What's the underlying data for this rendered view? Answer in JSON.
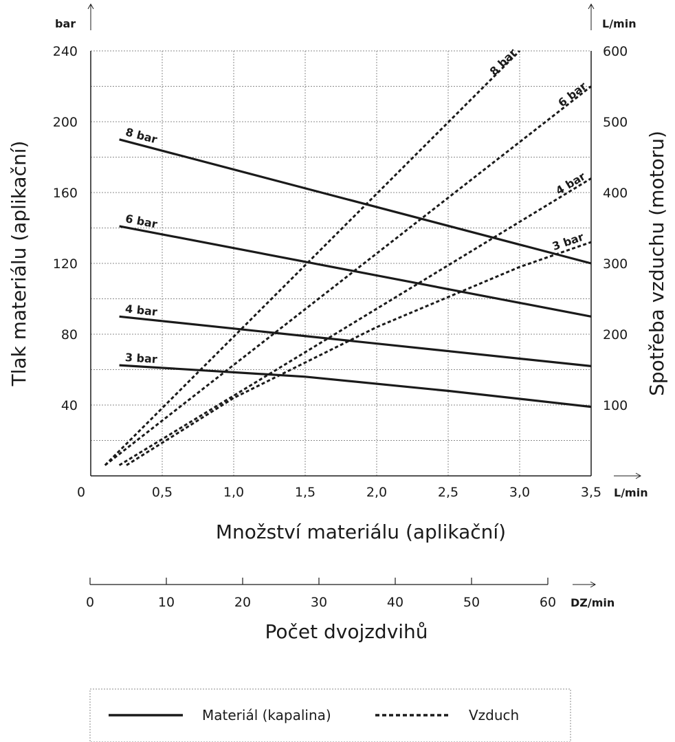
{
  "chart_data": {
    "type": "line",
    "xlabel": "Množství materiálu (aplikační)",
    "x_unit": "L/min",
    "xlim": [
      0,
      3.5
    ],
    "x_ticks": [
      "0",
      "0,5",
      "1,0",
      "1,5",
      "2,0",
      "2,5",
      "3,0",
      "3,5"
    ],
    "ylabel_left": "Tlak materiálu (aplikační)",
    "y_unit_left": "bar",
    "ylim_left": [
      0,
      240
    ],
    "y_ticks_left": [
      "40",
      "80",
      "120",
      "160",
      "200",
      "240"
    ],
    "ylabel_right": "Spotřeba vzduchu (motoru)",
    "y_unit_right": "L/min",
    "ylim_right": [
      0,
      600
    ],
    "y_ticks_right": [
      "100",
      "200",
      "300",
      "400",
      "500",
      "600"
    ],
    "secondary_x": {
      "label": "Počet dvojzdvihů",
      "unit": "DZ/min",
      "range": [
        0,
        60
      ],
      "ticks": [
        "0",
        "10",
        "20",
        "30",
        "40",
        "50",
        "60"
      ]
    },
    "grid": true,
    "series": [
      {
        "name": "8 bar",
        "kind": "material",
        "axis": "left",
        "points": [
          [
            0.2,
            190
          ],
          [
            3.5,
            120
          ]
        ]
      },
      {
        "name": "6 bar",
        "kind": "material",
        "axis": "left",
        "points": [
          [
            0.2,
            141
          ],
          [
            3.5,
            90
          ]
        ]
      },
      {
        "name": "4 bar",
        "kind": "material",
        "axis": "left",
        "points": [
          [
            0.2,
            90
          ],
          [
            3.5,
            62
          ]
        ]
      },
      {
        "name": "3 bar",
        "kind": "material",
        "axis": "left",
        "points": [
          [
            0.2,
            62.5
          ],
          [
            1.5,
            56
          ],
          [
            2.5,
            48
          ],
          [
            3.5,
            39
          ]
        ]
      },
      {
        "name": "8 bar",
        "kind": "air",
        "axis": "right",
        "points": [
          [
            0.1,
            15
          ],
          [
            3.0,
            600
          ]
        ]
      },
      {
        "name": "6 bar",
        "kind": "air",
        "axis": "right",
        "points": [
          [
            0.1,
            15
          ],
          [
            3.5,
            550
          ]
        ]
      },
      {
        "name": "4 bar",
        "kind": "air",
        "axis": "right",
        "points": [
          [
            0.2,
            15
          ],
          [
            3.5,
            420
          ]
        ]
      },
      {
        "name": "3 bar",
        "kind": "air",
        "axis": "right",
        "points": [
          [
            0.25,
            15
          ],
          [
            1.0,
            110
          ],
          [
            2.0,
            210
          ],
          [
            3.0,
            295
          ],
          [
            3.5,
            330
          ]
        ]
      }
    ]
  },
  "legend": {
    "material_label": "Materiál (kapalina)",
    "air_label": "Vzduch"
  }
}
